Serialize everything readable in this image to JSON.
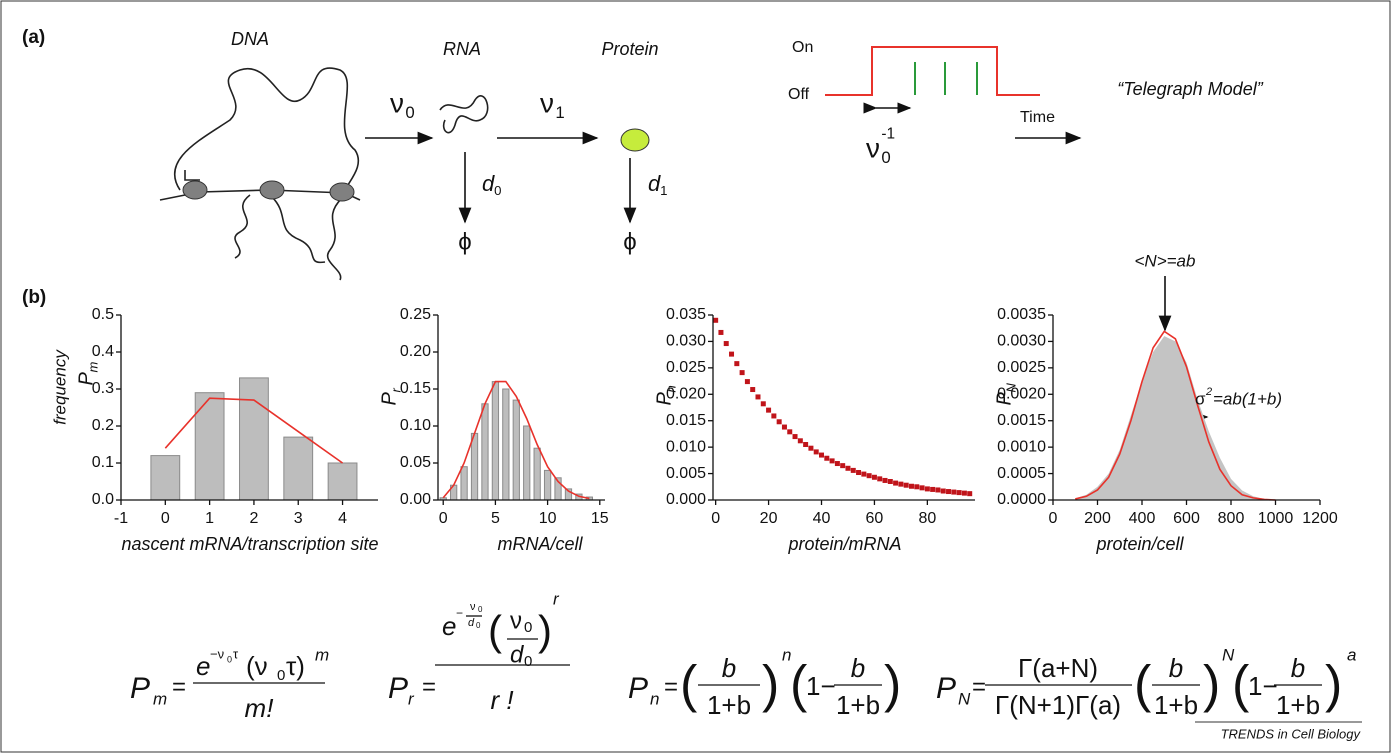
{
  "diagram": {
    "panel_a": "(a)",
    "panel_b": "(b)",
    "labels": [
      "DNA",
      "RNA",
      "Protein",
      "On",
      "Off",
      "Time",
      "“Telegraph Model”"
    ],
    "rates": [
      {
        "symbol": "ν",
        "sub": "0"
      },
      {
        "symbol": "ν",
        "sub": "1"
      },
      {
        "symbol": "d",
        "sub": "0"
      },
      {
        "symbol": "d",
        "sub": "1"
      },
      {
        "symbol": "ν",
        "sub": "0",
        "sup": "-1"
      }
    ],
    "sinks": [
      "ϕ",
      "ϕ"
    ]
  },
  "chart_data": [
    {
      "type": "bar",
      "ylabel": "frequency",
      "ysymbol": {
        "symbol": "P",
        "sub": "m"
      },
      "xlabel": "nascent mRNA/transcription site",
      "x": [
        0,
        1,
        2,
        3,
        4
      ],
      "values": [
        0.12,
        0.29,
        0.33,
        0.17,
        0.1
      ],
      "color": "#bdbdbd",
      "curve": [
        0.14,
        0.275,
        0.27,
        0.185,
        0.1
      ],
      "curve_color": "#e8322b",
      "xlim": [
        -1,
        4.8
      ],
      "xticks": [
        -1,
        0,
        1,
        2,
        3,
        4
      ],
      "ylim": [
        0,
        0.5
      ],
      "yticks": [
        {
          "value": 0,
          "label": "0.0"
        },
        0.1,
        0.2,
        0.3,
        0.4,
        0.5
      ]
    },
    {
      "type": "bar",
      "ysymbol": {
        "symbol": "P",
        "sub": "r"
      },
      "xlabel": "mRNA/cell",
      "x": [
        0,
        1,
        2,
        3,
        4,
        5,
        6,
        7,
        8,
        9,
        10,
        11,
        12,
        13,
        14
      ],
      "values": [
        0.003,
        0.02,
        0.045,
        0.09,
        0.13,
        0.16,
        0.15,
        0.135,
        0.1,
        0.07,
        0.04,
        0.03,
        0.015,
        0.008,
        0.004
      ],
      "color": "#bdbdbd",
      "curve": [
        0.003,
        0.02,
        0.05,
        0.09,
        0.13,
        0.16,
        0.16,
        0.14,
        0.11,
        0.075,
        0.045,
        0.025,
        0.012,
        0.005,
        0.002
      ],
      "curve_color": "#e8322b",
      "xlim": [
        -0.5,
        15.5
      ],
      "xticks": [
        0,
        5,
        10,
        15
      ],
      "ylim": [
        0,
        0.25
      ],
      "yticks": [
        {
          "value": 0,
          "label": "0.00"
        },
        0.05,
        {
          "value": 0.1,
          "label": "0.10"
        },
        0.15,
        {
          "value": 0.2,
          "label": "0.20"
        },
        0.25
      ]
    },
    {
      "type": "scatter",
      "ysymbol": {
        "symbol": "P",
        "sub": "n"
      },
      "xlabel": "protein/mRNA",
      "color": "#c0141a",
      "x": [
        0,
        2,
        4,
        6,
        8,
        10,
        12,
        14,
        16,
        18,
        20,
        22,
        24,
        26,
        28,
        30,
        32,
        34,
        36,
        38,
        40,
        42,
        44,
        46,
        48,
        50,
        52,
        54,
        56,
        58,
        60,
        62,
        64,
        66,
        68,
        70,
        72,
        74,
        76,
        78,
        80,
        82,
        84,
        86,
        88,
        90,
        92,
        94,
        96
      ],
      "values": [
        0.034,
        0.0317,
        0.0296,
        0.0276,
        0.0258,
        0.0241,
        0.0224,
        0.0209,
        0.0195,
        0.0182,
        0.017,
        0.0159,
        0.0148,
        0.0138,
        0.0129,
        0.012,
        0.0112,
        0.0105,
        0.0098,
        0.0091,
        0.0085,
        0.0079,
        0.0074,
        0.0069,
        0.0065,
        0.006,
        0.0056,
        0.0052,
        0.0049,
        0.0046,
        0.0043,
        0.004,
        0.0037,
        0.0035,
        0.0032,
        0.003,
        0.0028,
        0.0026,
        0.0025,
        0.0023,
        0.0021,
        0.002,
        0.0019,
        0.0017,
        0.0016,
        0.0015,
        0.0014,
        0.0013,
        0.0012
      ],
      "xlim": [
        -1,
        98
      ],
      "xticks": [
        0,
        20,
        40,
        60,
        80
      ],
      "ylim": [
        0,
        0.035
      ],
      "yticks": [
        {
          "value": 0,
          "label": "0.000"
        },
        0.005,
        {
          "value": 0.01,
          "label": "0.010"
        },
        0.015,
        {
          "value": 0.02,
          "label": "0.020"
        },
        0.025,
        {
          "value": 0.03,
          "label": "0.030"
        },
        0.035
      ]
    },
    {
      "type": "area",
      "ysymbol": {
        "symbol": "P",
        "sub": "N"
      },
      "xlabel": "protein/cell",
      "color": "#c4c4c4",
      "curve_color": "#e8322b",
      "x": [
        100,
        150,
        200,
        250,
        300,
        350,
        400,
        450,
        500,
        550,
        600,
        650,
        700,
        750,
        800,
        850,
        900,
        950,
        1000
      ],
      "values": [
        3e-05,
        0.0001,
        0.00025,
        0.0005,
        0.00095,
        0.0016,
        0.00225,
        0.0028,
        0.0031,
        0.003,
        0.0026,
        0.0019,
        0.0013,
        0.0008,
        0.0004,
        0.00018,
        7e-05,
        2e-05,
        0
      ],
      "curve": [
        2e-05,
        7e-05,
        0.00019,
        0.00043,
        0.00087,
        0.0015,
        0.00224,
        0.00288,
        0.00319,
        0.00305,
        0.00252,
        0.00179,
        0.0011,
        0.00058,
        0.00027,
        0.0001,
        4e-05,
        1e-05,
        0
      ],
      "xlim": [
        0,
        1200
      ],
      "xticks": [
        0,
        200,
        400,
        600,
        800,
        1000,
        1200
      ],
      "ylim": [
        0,
        0.0035
      ],
      "yticks": [
        {
          "value": 0,
          "label": "0.0000"
        },
        {
          "value": 0.0005,
          "label": "0.0005"
        },
        {
          "value": 0.001,
          "label": "0.0010"
        },
        {
          "value": 0.0015,
          "label": "0.0015"
        },
        {
          "value": 0.002,
          "label": "0.0020"
        },
        {
          "value": 0.0025,
          "label": "0.0025"
        },
        {
          "value": 0.003,
          "label": "0.0030"
        },
        {
          "value": 0.0035,
          "label": "0.0035"
        }
      ],
      "mean_label": "<N>=ab",
      "variance_label": {
        "symbol": "σ",
        "sup": "2",
        "rest": "=ab(1+b)"
      }
    }
  ],
  "equations": [
    [
      "P",
      "m",
      "=",
      "e",
      "−ν",
      "0",
      "τ",
      "(ν",
      "0",
      "τ)",
      "m",
      "m!"
    ],
    [
      "P",
      "r",
      "=",
      "e",
      "−",
      "ν",
      "0",
      "d",
      "0",
      "(",
      "ν",
      "0",
      "d",
      "0",
      ")",
      "r",
      "r !"
    ],
    [
      "P",
      "n",
      "=",
      "(",
      "b",
      "1+b",
      ")",
      "n",
      "(",
      "1−",
      "b",
      "1+b",
      ")"
    ],
    [
      "P",
      "N",
      "=",
      "Γ(a+N)",
      "Γ(N+1)Γ(a)",
      "(",
      "b",
      "1+b",
      ")",
      "N",
      "(",
      "1−",
      "b",
      "1+b",
      ")",
      "a"
    ]
  ],
  "footer": "TRENDS in Cell Biology"
}
